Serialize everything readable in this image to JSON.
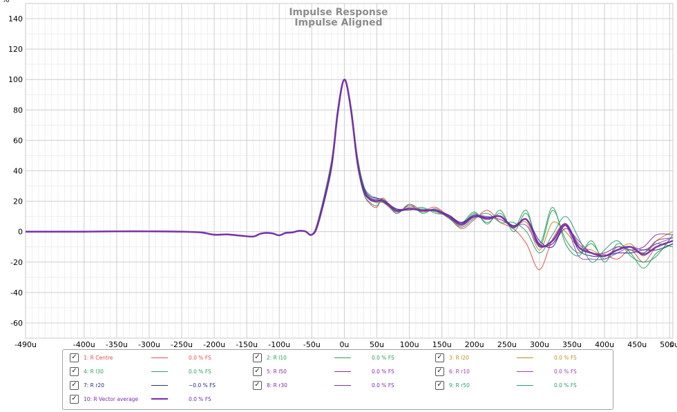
{
  "chart_data": {
    "type": "line",
    "title": "Impulse Response",
    "subtitle": "Impulse Aligned",
    "y_unit": "%",
    "x_unit": "s",
    "xlim": [
      -0.00049,
      0.000505
    ],
    "ylim": [
      -70,
      150
    ],
    "x_ticks": [
      {
        "value": -0.00049,
        "label": "-490u"
      },
      {
        "value": -0.0004,
        "label": "-400u"
      },
      {
        "value": -0.00035,
        "label": "-350u"
      },
      {
        "value": -0.0003,
        "label": "-300u"
      },
      {
        "value": -0.00025,
        "label": "-250u"
      },
      {
        "value": -0.0002,
        "label": "-200u"
      },
      {
        "value": -0.00015,
        "label": "-150u"
      },
      {
        "value": -0.0001,
        "label": "-100u"
      },
      {
        "value": -5e-05,
        "label": "-50u"
      },
      {
        "value": 0,
        "label": "0u"
      },
      {
        "value": 5e-05,
        "label": "50u"
      },
      {
        "value": 0.0001,
        "label": "100u"
      },
      {
        "value": 0.00015,
        "label": "150u"
      },
      {
        "value": 0.0002,
        "label": "200u"
      },
      {
        "value": 0.00025,
        "label": "250u"
      },
      {
        "value": 0.0003,
        "label": "300u"
      },
      {
        "value": 0.00035,
        "label": "350u"
      },
      {
        "value": 0.0004,
        "label": "400u"
      },
      {
        "value": 0.00045,
        "label": "450u"
      },
      {
        "value": 0.0005,
        "label": "500u"
      }
    ],
    "y_ticks": [
      -60,
      -40,
      -20,
      0,
      20,
      40,
      60,
      80,
      100,
      120,
      140
    ],
    "grid": true,
    "legend_placement": "bottom",
    "common_curve": {
      "x": [
        -0.00049,
        -0.00045,
        -0.0004,
        -0.00035,
        -0.0003,
        -0.00025,
        -0.00022,
        -0.0002,
        -0.00018,
        -0.00016,
        -0.00014,
        -0.00013,
        -0.00012,
        -0.00011,
        -0.0001,
        -9e-05,
        -8e-05,
        -7e-05,
        -6e-05,
        -5e-05
      ],
      "y": [
        0,
        0,
        0,
        0.2,
        0.2,
        0,
        -0.5,
        -2,
        -1.8,
        -2.6,
        -3.2,
        -1.5,
        -0.8,
        -1.2,
        -2.4,
        -0.8,
        -0.5,
        0.5,
        0.2,
        -2
      ]
    },
    "series": [
      {
        "name": "R Centre",
        "index": "1:",
        "value": "0.0 % FS",
        "color": "#e05050",
        "x": [
          -4e-05,
          -2e-05,
          -1e-05,
          0,
          1e-05,
          2e-05,
          3e-05,
          4e-05,
          5e-05,
          6e-05,
          8e-05,
          0.0001,
          0.00012,
          0.00014,
          0.00016,
          0.00018,
          0.0002,
          0.00022,
          0.00024,
          0.00026,
          0.00028,
          0.0003,
          0.00032,
          0.00034,
          0.00036,
          0.00038,
          0.0004,
          0.00042,
          0.00044,
          0.00046,
          0.00048,
          0.000505
        ],
        "y": [
          8,
          45,
          80,
          100,
          80,
          45,
          25,
          18,
          16,
          22,
          12,
          18,
          14,
          16,
          10,
          2,
          8,
          14,
          6,
          2,
          -8,
          -25,
          -5,
          5,
          -10,
          -14,
          -15,
          -18,
          -12,
          -20,
          -10,
          -6
        ]
      },
      {
        "name": "R l10",
        "index": "2:",
        "value": "0.0 % FS",
        "color": "#2ca05a",
        "x": [
          -4e-05,
          -2e-05,
          -1e-05,
          0,
          1e-05,
          2e-05,
          3e-05,
          4e-05,
          5e-05,
          6e-05,
          8e-05,
          0.0001,
          0.00012,
          0.00014,
          0.00016,
          0.00018,
          0.0002,
          0.00022,
          0.00024,
          0.00026,
          0.00028,
          0.0003,
          0.00032,
          0.00034,
          0.00036,
          0.00038,
          0.0004,
          0.00042,
          0.00044,
          0.00046,
          0.00048,
          0.000505
        ],
        "y": [
          6,
          42,
          78,
          100,
          82,
          48,
          28,
          22,
          20,
          20,
          14,
          15,
          15,
          13,
          10,
          5,
          12,
          6,
          12,
          2,
          14,
          -10,
          14,
          -5,
          -14,
          -8,
          -18,
          -10,
          -12,
          -14,
          -8,
          -10
        ]
      },
      {
        "name": "R l20",
        "index": "3:",
        "value": "0.0 % FS",
        "color": "#b89020",
        "x": [
          -4e-05,
          -2e-05,
          -1e-05,
          0,
          1e-05,
          2e-05,
          3e-05,
          4e-05,
          5e-05,
          6e-05,
          8e-05,
          0.0001,
          0.00012,
          0.00014,
          0.00016,
          0.00018,
          0.0002,
          0.00022,
          0.00024,
          0.00026,
          0.00028,
          0.0003,
          0.00032,
          0.00034,
          0.00036,
          0.00038,
          0.0004,
          0.00042,
          0.00044,
          0.00046,
          0.00048,
          0.000505
        ],
        "y": [
          7,
          44,
          79,
          100,
          81,
          46,
          27,
          21,
          19,
          19,
          13,
          16,
          13,
          14,
          9,
          4,
          10,
          9,
          8,
          3,
          6,
          -12,
          6,
          0,
          -10,
          -12,
          -16,
          -12,
          -8,
          -16,
          -6,
          0
        ]
      },
      {
        "name": "R l30",
        "index": "4:",
        "value": "0.0 % FS",
        "color": "#30a060",
        "x": [
          -4e-05,
          -2e-05,
          -1e-05,
          0,
          1e-05,
          2e-05,
          3e-05,
          4e-05,
          5e-05,
          6e-05,
          8e-05,
          0.0001,
          0.00012,
          0.00014,
          0.00016,
          0.00018,
          0.0002,
          0.00022,
          0.00024,
          0.00026,
          0.00028,
          0.0003,
          0.00032,
          0.00034,
          0.00036,
          0.00038,
          0.0004,
          0.00042,
          0.00044,
          0.00046,
          0.00048,
          0.000505
        ],
        "y": [
          5,
          40,
          76,
          100,
          83,
          50,
          30,
          24,
          22,
          19,
          15,
          14,
          16,
          12,
          11,
          6,
          13,
          5,
          14,
          0,
          12,
          -8,
          16,
          -8,
          -16,
          -6,
          -20,
          -8,
          -14,
          -24,
          -14,
          -8
        ]
      },
      {
        "name": "R l50",
        "index": "5:",
        "value": "0.0 % FS",
        "color": "#8a2aa0",
        "x": [
          -4e-05,
          -2e-05,
          -1e-05,
          0,
          1e-05,
          2e-05,
          3e-05,
          4e-05,
          5e-05,
          6e-05,
          8e-05,
          0.0001,
          0.00012,
          0.00014,
          0.00016,
          0.00018,
          0.0002,
          0.00022,
          0.00024,
          0.00026,
          0.00028,
          0.0003,
          0.00032,
          0.00034,
          0.00036,
          0.00038,
          0.0004,
          0.00042,
          0.00044,
          0.00046,
          0.00048,
          0.000505
        ],
        "y": [
          6,
          43,
          80,
          100,
          80,
          46,
          27,
          22,
          21,
          20,
          14,
          15,
          14,
          14,
          11,
          6,
          10,
          8,
          10,
          3,
          8,
          -8,
          -8,
          2,
          -6,
          -14,
          -14,
          -10,
          -12,
          -10,
          -2,
          -2
        ]
      },
      {
        "name": "R r10",
        "index": "6:",
        "value": "0.0 % FS",
        "color": "#9a40b8",
        "x": [
          -4e-05,
          -2e-05,
          -1e-05,
          0,
          1e-05,
          2e-05,
          3e-05,
          4e-05,
          5e-05,
          6e-05,
          8e-05,
          0.0001,
          0.00012,
          0.00014,
          0.00016,
          0.00018,
          0.0002,
          0.00022,
          0.00024,
          0.00026,
          0.00028,
          0.0003,
          0.00032,
          0.00034,
          0.00036,
          0.00038,
          0.0004,
          0.00042,
          0.00044,
          0.00046,
          0.00048,
          0.000505
        ],
        "y": [
          7,
          44,
          79,
          100,
          81,
          45,
          26,
          21,
          20,
          21,
          13,
          17,
          13,
          15,
          10,
          4,
          10,
          10,
          8,
          4,
          4,
          -10,
          -6,
          4,
          -16,
          -18,
          -18,
          -14,
          -10,
          -12,
          -8,
          -4
        ]
      },
      {
        "name": "R r20",
        "index": "7:",
        "value": "−0.0 % FS",
        "color": "#2a2a80",
        "x": [
          -4e-05,
          -2e-05,
          -1e-05,
          0,
          1e-05,
          2e-05,
          3e-05,
          4e-05,
          5e-05,
          6e-05,
          8e-05,
          0.0001,
          0.00012,
          0.00014,
          0.00016,
          0.00018,
          0.0002,
          0.00022,
          0.00024,
          0.00026,
          0.00028,
          0.0003,
          0.00032,
          0.00034,
          0.00036,
          0.00038,
          0.0004,
          0.00042,
          0.00044,
          0.00046,
          0.00048,
          0.000505
        ],
        "y": [
          5,
          41,
          77,
          100,
          82,
          48,
          29,
          23,
          22,
          21,
          15,
          15,
          14,
          14,
          11,
          6,
          11,
          9,
          10,
          4,
          8,
          -6,
          -10,
          4,
          -12,
          -16,
          -16,
          -14,
          -14,
          -12,
          -12,
          -8
        ]
      },
      {
        "name": "R r30",
        "index": "8:",
        "value": "0.0 % FS",
        "color": "#7a30a0",
        "x": [
          -4e-05,
          -2e-05,
          -1e-05,
          0,
          1e-05,
          2e-05,
          3e-05,
          4e-05,
          5e-05,
          6e-05,
          8e-05,
          0.0001,
          0.00012,
          0.00014,
          0.00016,
          0.00018,
          0.0002,
          0.00022,
          0.00024,
          0.00026,
          0.00028,
          0.0003,
          0.00032,
          0.00034,
          0.00036,
          0.00038,
          0.0004,
          0.00042,
          0.00044,
          0.00046,
          0.00048,
          0.000505
        ],
        "y": [
          6,
          42,
          78,
          100,
          82,
          47,
          28,
          22,
          21,
          20,
          14,
          15,
          14,
          14,
          11,
          5,
          11,
          8,
          10,
          3,
          8,
          -8,
          -8,
          4,
          -8,
          -14,
          -16,
          -12,
          -10,
          -14,
          -6,
          -4
        ]
      },
      {
        "name": "R r50",
        "index": "9:",
        "value": "0.0 % FS",
        "color": "#28a068",
        "x": [
          -4e-05,
          -2e-05,
          -1e-05,
          0,
          1e-05,
          2e-05,
          3e-05,
          4e-05,
          5e-05,
          6e-05,
          8e-05,
          0.0001,
          0.00012,
          0.00014,
          0.00016,
          0.00018,
          0.0002,
          0.00022,
          0.00024,
          0.00026,
          0.00028,
          0.0003,
          0.00032,
          0.00034,
          0.00036,
          0.00038,
          0.0004,
          0.00042,
          0.00044,
          0.00046,
          0.00048,
          0.000505
        ],
        "y": [
          8,
          46,
          81,
          100,
          79,
          44,
          25,
          19,
          17,
          21,
          12,
          18,
          12,
          15,
          9,
          3,
          9,
          12,
          6,
          6,
          0,
          -14,
          -2,
          10,
          -4,
          -20,
          -12,
          -6,
          -16,
          -20,
          -16,
          -2
        ]
      },
      {
        "name": "R Vector average",
        "index": "10:",
        "value": "0.0 % FS",
        "color": "#7a2aa8",
        "width": 2.6,
        "x": [
          -4e-05,
          -2e-05,
          -1e-05,
          0,
          1e-05,
          2e-05,
          3e-05,
          4e-05,
          5e-05,
          6e-05,
          8e-05,
          0.0001,
          0.00012,
          0.00014,
          0.00016,
          0.00018,
          0.0002,
          0.00022,
          0.00024,
          0.00026,
          0.00028,
          0.0003,
          0.00032,
          0.00034,
          0.00036,
          0.00038,
          0.0004,
          0.00042,
          0.00044,
          0.00046,
          0.00048,
          0.000505
        ],
        "y": [
          6,
          43,
          79,
          100,
          81,
          46,
          27,
          21,
          20,
          20,
          14,
          15,
          14,
          14,
          10,
          5,
          10,
          9,
          10,
          3,
          8,
          -9,
          -6,
          5,
          -10,
          -14,
          -16,
          -12,
          -10,
          -15,
          -10,
          -6
        ]
      }
    ]
  },
  "legend": {
    "items": [
      {
        "index": "1:",
        "name": "R Centre",
        "value": "0.0 % FS",
        "color": "#e05050",
        "checked": true
      },
      {
        "index": "2:",
        "name": "R l10",
        "value": "0.0 % FS",
        "color": "#2ca05a",
        "checked": true
      },
      {
        "index": "3:",
        "name": "R l20",
        "value": "0.0 % FS",
        "color": "#b89020",
        "checked": true
      },
      {
        "index": "4:",
        "name": "R l30",
        "value": "0.0 % FS",
        "color": "#30a060",
        "checked": true
      },
      {
        "index": "5:",
        "name": "R l50",
        "value": "0.0 % FS",
        "color": "#8a2aa0",
        "checked": true
      },
      {
        "index": "6:",
        "name": "R r10",
        "value": "0.0 % FS",
        "color": "#9a40b8",
        "checked": true
      },
      {
        "index": "7:",
        "name": "R r20",
        "value": "−0.0 % FS",
        "color": "#2a2a80",
        "checked": true
      },
      {
        "index": "8:",
        "name": "R r30",
        "value": "0.0 % FS",
        "color": "#7a30a0",
        "checked": true
      },
      {
        "index": "9:",
        "name": "R r50",
        "value": "0.0 % FS",
        "color": "#28a068",
        "checked": true
      },
      {
        "index": "10:",
        "name": "R Vector average",
        "value": "0.0 % FS",
        "color": "#7a2aa8",
        "checked": true
      }
    ]
  }
}
